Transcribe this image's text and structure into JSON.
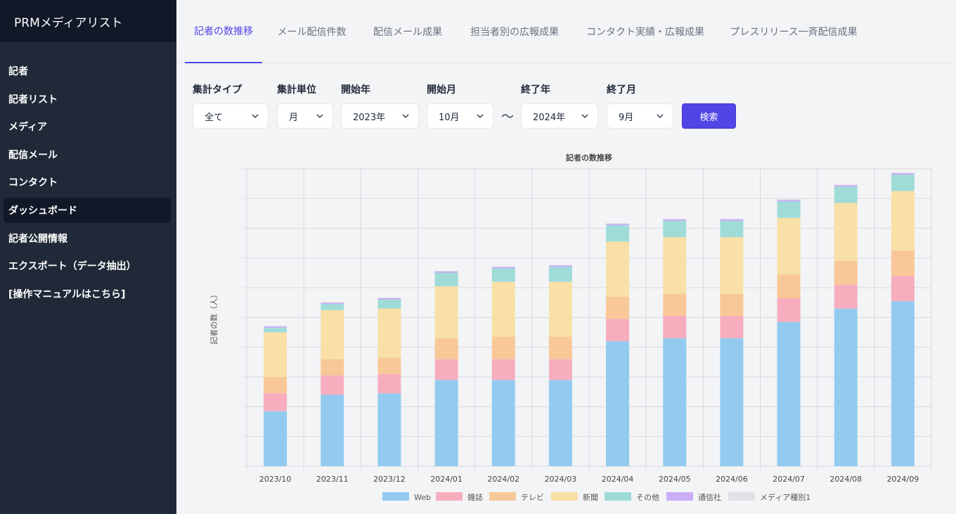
{
  "app": {
    "title": "PRMメディアリスト"
  },
  "sidebar": {
    "items": [
      {
        "label": "記者",
        "name": "sidebar-item-journalists",
        "active": false
      },
      {
        "label": "記者リスト",
        "name": "sidebar-item-journalist-list",
        "active": false
      },
      {
        "label": "メディア",
        "name": "sidebar-item-media",
        "active": false
      },
      {
        "label": "配信メール",
        "name": "sidebar-item-mail",
        "active": false
      },
      {
        "label": "コンタクト",
        "name": "sidebar-item-contact",
        "active": false
      },
      {
        "label": "ダッシュボード",
        "name": "sidebar-item-dashboard",
        "active": true
      },
      {
        "label": "記者公開情報",
        "name": "sidebar-item-public-info",
        "active": false
      },
      {
        "label": "エクスポート（データ抽出）",
        "name": "sidebar-item-export",
        "active": false
      },
      {
        "label": "[操作マニュアルはこちら]",
        "name": "sidebar-item-manual",
        "active": false
      }
    ]
  },
  "tabs": [
    {
      "label": "記者の数推移",
      "active": true
    },
    {
      "label": "メール配信件数",
      "active": false
    },
    {
      "label": "配信メール成果",
      "active": false
    },
    {
      "label": "担当者別の広報成果",
      "active": false
    },
    {
      "label": "コンタクト実績・広報成果",
      "active": false
    },
    {
      "label": "プレスリリース一斉配信成果",
      "active": false
    }
  ],
  "filters": {
    "aggregate_type": {
      "label": "集計タイプ",
      "value": "全て"
    },
    "unit": {
      "label": "集計単位",
      "value": "月"
    },
    "start_year": {
      "label": "開始年",
      "value": "2023年"
    },
    "start_month": {
      "label": "開始月",
      "value": "10月"
    },
    "range_separator": "〜",
    "end_year": {
      "label": "終了年",
      "value": "2024年"
    },
    "end_month": {
      "label": "終了月",
      "value": "9月"
    },
    "search_label": "検索"
  },
  "colors": {
    "accent": "#4f46e5",
    "sidebar_bg": "#1f2937",
    "brand_bg": "#111827"
  },
  "chart_data": {
    "type": "bar",
    "stacked": true,
    "title": "記者の数推移",
    "ylabel": "記者の数（人）",
    "xlabel": "",
    "y_tick_labels_visible": false,
    "ylim": [
      0,
      100
    ],
    "categories": [
      "2023/10",
      "2023/11",
      "2023/12",
      "2024/01",
      "2024/02",
      "2024/03",
      "2024/04",
      "2024/05",
      "2024/06",
      "2024/07",
      "2024/08",
      "2024/09"
    ],
    "series": [
      {
        "name": "Web",
        "color": "#93cbf0",
        "values": [
          18.5,
          24,
          24.5,
          29,
          29,
          29,
          42,
          43,
          43,
          48.5,
          53,
          55.5
        ]
      },
      {
        "name": "雑誌",
        "color": "#f8adbf",
        "values": [
          6,
          6.5,
          6.5,
          7,
          7,
          7,
          7.5,
          7.5,
          7.5,
          8,
          8,
          8.5
        ]
      },
      {
        "name": "テレビ",
        "color": "#f8c898",
        "values": [
          5.5,
          5.5,
          5.5,
          7,
          7.5,
          7.5,
          7.5,
          7.5,
          7.5,
          8,
          8,
          8.5
        ]
      },
      {
        "name": "新聞",
        "color": "#f9e0a6",
        "values": [
          15,
          16.5,
          16.5,
          17.5,
          18.5,
          18.5,
          18.5,
          19,
          19,
          19,
          19.5,
          20
        ]
      },
      {
        "name": "その他",
        "color": "#9fdcd8",
        "values": [
          1.5,
          2,
          3,
          4.5,
          4.5,
          5,
          5.5,
          5.5,
          5.5,
          5.5,
          5.5,
          5.5
        ]
      },
      {
        "name": "通信社",
        "color": "#c9aef7",
        "values": [
          0.5,
          0.5,
          0.5,
          0.5,
          0.5,
          0.5,
          0.5,
          0.5,
          0.5,
          0.5,
          0.5,
          0.5
        ]
      },
      {
        "name": "メディア種別1",
        "color": "#e2e2e6",
        "values": [
          0.2,
          0.2,
          0.2,
          0.2,
          0.2,
          0.2,
          0.2,
          0.2,
          0.2,
          0.2,
          0.2,
          0.2
        ]
      }
    ],
    "grid": true,
    "legend_position": "bottom"
  }
}
